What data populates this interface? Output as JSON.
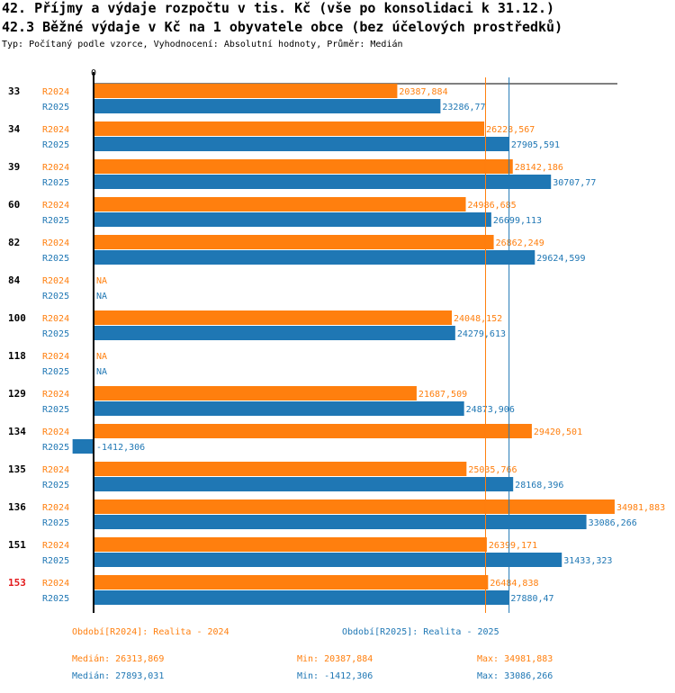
{
  "header": {
    "title_line1": "42. Příjmy a výdaje rozpočtu v tis. Kč (vše po konsolidaci k 31.12.)",
    "title_line2": "42.3 Běžné výdaje v Kč na 1 obyvatele obce (bez účelových prostředků)",
    "subtitle": "Typ: Počítaný podle vzorce, Vyhodnocení: Absolutní hodnoty, Průměr: Medián"
  },
  "colors": {
    "R2024": "#ff7f0e",
    "R2025": "#1f77b4",
    "highlight_category": "#e31a1c",
    "axis": "#000000"
  },
  "chart_data": {
    "type": "bar",
    "orientation": "horizontal",
    "axis_zero_label": "0",
    "categories": [
      "33",
      "34",
      "39",
      "60",
      "82",
      "84",
      "100",
      "118",
      "129",
      "134",
      "135",
      "136",
      "151",
      "153"
    ],
    "highlight_category": "153",
    "series": [
      {
        "name": "R2024",
        "values": [
          20387.884,
          26228.567,
          28142.186,
          24986.685,
          26862.249,
          null,
          24048.152,
          null,
          21687.509,
          29420.501,
          25035.766,
          34981.883,
          26399.171,
          26484.838
        ],
        "labels": [
          "20387,884",
          "26228,567",
          "28142,186",
          "24986,685",
          "26862,249",
          "NA",
          "24048,152",
          "NA",
          "21687,509",
          "29420,501",
          "25035,766",
          "34981,883",
          "26399,171",
          "26484,838"
        ]
      },
      {
        "name": "R2025",
        "values": [
          23286.77,
          27905.591,
          30707.77,
          26699.113,
          29624.599,
          null,
          24279.613,
          null,
          24873.906,
          -1412.306,
          28168.396,
          33086.266,
          31433.323,
          27880.47
        ],
        "labels": [
          "23286,77",
          "27905,591",
          "30707,77",
          "26699,113",
          "29624,599",
          "NA",
          "24279,613",
          "NA",
          "24873,906",
          "-1412,306",
          "28168,396",
          "33086,266",
          "31433,323",
          "27880,47"
        ]
      }
    ],
    "medians": {
      "R2024": 26313.869,
      "R2025": 27893.031
    },
    "xlim": [
      -1412.306,
      34981.883
    ]
  },
  "footer": {
    "legend_r2024": "Období[R2024]: Realita - 2024",
    "legend_r2025": "Období[R2025]: Realita - 2025",
    "r2024_median": "Medián: 26313,869",
    "r2024_min": "Min: 20387,884",
    "r2024_max": "Max: 34981,883",
    "r2025_median": "Medián: 27893,031",
    "r2025_min": "Min: -1412,306",
    "r2025_max": "Max: 33086,266"
  }
}
